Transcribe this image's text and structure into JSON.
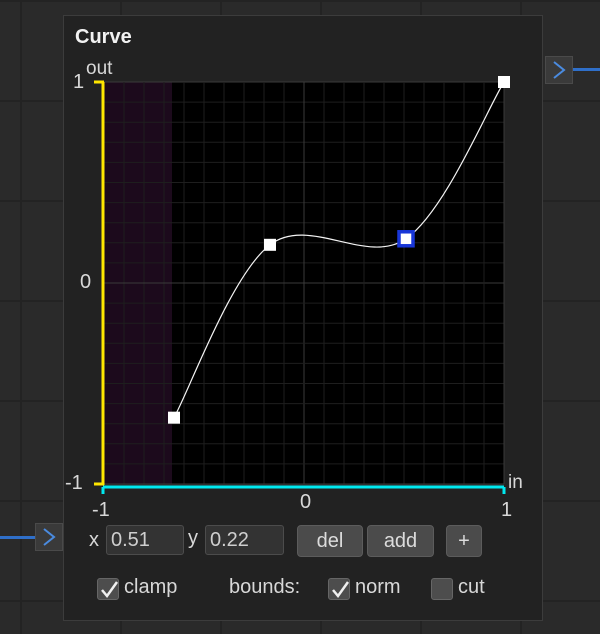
{
  "node": {
    "title": "Curve",
    "out_label": "out",
    "in_label": "in"
  },
  "axes": {
    "y_ticks": [
      "1",
      "0",
      "-1"
    ],
    "x_ticks": [
      "-1",
      "0",
      "1"
    ],
    "xlim": [
      -1,
      1
    ],
    "ylim": [
      -1,
      1
    ],
    "clamp_region": [
      -1,
      -0.66
    ]
  },
  "curve": {
    "points": [
      {
        "x": -0.65,
        "y": -0.67
      },
      {
        "x": -0.17,
        "y": 0.19
      },
      {
        "x": 0.51,
        "y": 0.22
      },
      {
        "x": 1.0,
        "y": 1.0
      }
    ],
    "selected_index": 2
  },
  "controls": {
    "x_label": "x",
    "x_value": "0.51",
    "y_label": "y",
    "y_value": "0.22",
    "del_label": "del",
    "add_label": "add",
    "plus_label": "+",
    "clamp_label": "clamp",
    "clamp_checked": true,
    "bounds_label": "bounds:",
    "norm_label": "norm",
    "norm_checked": true,
    "cut_label": "cut",
    "cut_checked": false
  },
  "colors": {
    "y_axis": "#ffe600",
    "x_axis": "#00e8ef",
    "selected": "#1836d8",
    "clamp_tint": "#1c0a1c",
    "wire": "#2f6fc9"
  }
}
